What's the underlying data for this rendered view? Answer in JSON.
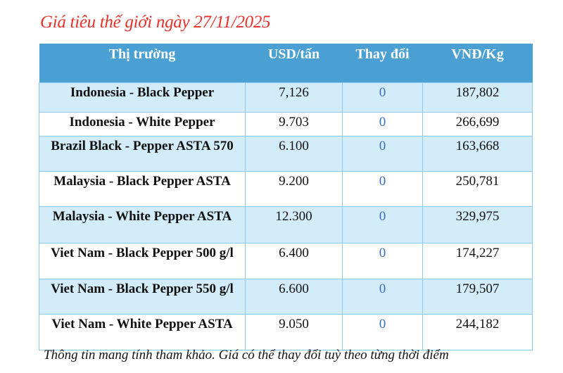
{
  "title": "Giá tiêu thế giới ngày 27/11/2025",
  "table": {
    "headers": [
      "Thị trường",
      "USD/tấn",
      "Thay đổi",
      "VNĐ/Kg"
    ],
    "rows": [
      {
        "market": "Indonesia - Black Pepper",
        "usd": "7,126",
        "change": "0",
        "vnd": "187,802"
      },
      {
        "market": "Indonesia - White Pepper",
        "usd": "9.703",
        "change": "0",
        "vnd": "266,699"
      },
      {
        "market": "Brazil Black - Pepper ASTA 570",
        "usd": "6.100",
        "change": "0",
        "vnd": "163,668"
      },
      {
        "market": "Malaysia - Black Pepper ASTA",
        "usd": "9.200",
        "change": "0",
        "vnd": "250,781"
      },
      {
        "market": "Malaysia - White Pepper ASTA",
        "usd": "12.300",
        "change": "0",
        "vnd": "329,975"
      },
      {
        "market": "Viet Nam - Black Pepper 500 g/l",
        "usd": "6.400",
        "change": "0",
        "vnd": "174,227"
      },
      {
        "market": "Viet Nam - Black Pepper 550 g/l",
        "usd": "6.600",
        "change": "0",
        "vnd": "179,507"
      },
      {
        "market": "Viet Nam - White Pepper ASTA",
        "usd": "9.050",
        "change": "0",
        "vnd": "244,182"
      }
    ]
  },
  "footer": "Thông tin mang tính tham khảo. Giá có thể thay đổi tuỳ theo từng thời điểm",
  "colors": {
    "title": "#e8302a",
    "header_bg": "#4a9fd3",
    "row_alt_bg": "#d3ecf9",
    "change_text": "#3a6fc0"
  }
}
